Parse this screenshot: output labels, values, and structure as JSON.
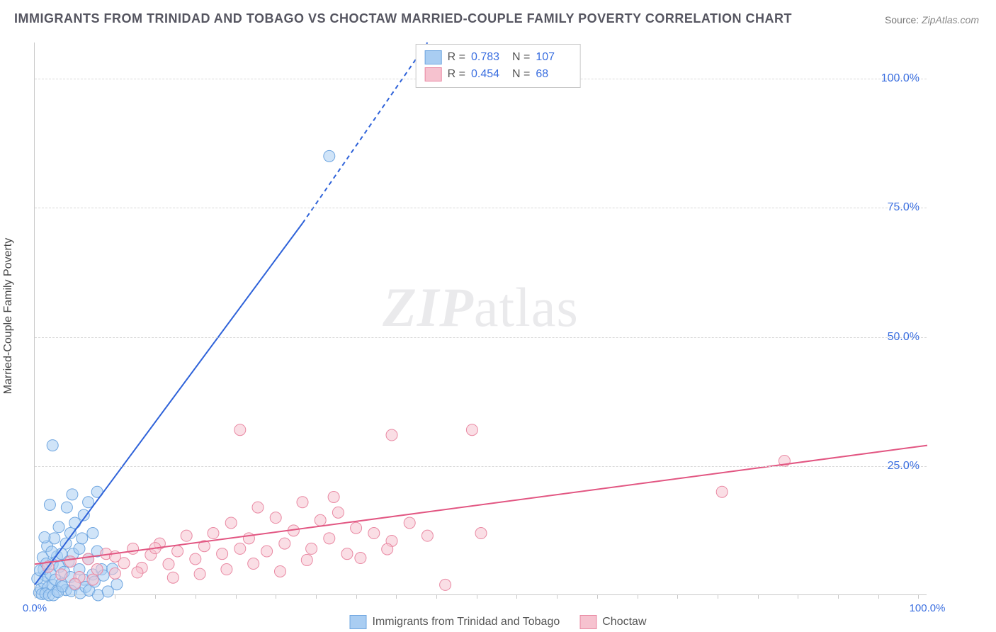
{
  "title": "IMMIGRANTS FROM TRINIDAD AND TOBAGO VS CHOCTAW MARRIED-COUPLE FAMILY POVERTY CORRELATION CHART",
  "source_label": "Source:",
  "source_value": "ZipAtlas.com",
  "y_axis_label": "Married-Couple Family Poverty",
  "watermark_a": "ZIP",
  "watermark_b": "atlas",
  "chart": {
    "type": "scatter-correlation",
    "background_color": "#ffffff",
    "grid_color": "#d8d8d8",
    "axis_color": "#c9c9c9",
    "tick_label_color": "#3b6fe0",
    "xlim": [
      0,
      100
    ],
    "ylim": [
      0,
      107
    ],
    "y_ticks": [
      25,
      50,
      75,
      100
    ],
    "y_tick_labels": [
      "25.0%",
      "50.0%",
      "75.0%",
      "100.0%"
    ],
    "x_ticks_minor_step": 4.5,
    "x_tick_labels": {
      "0": "0.0%",
      "100": "100.0%"
    },
    "marker_radius": 8,
    "marker_opacity": 0.55,
    "line_width": 2
  },
  "series": [
    {
      "id": "trinidad",
      "name": "Immigrants from Trinidad and Tobago",
      "color_fill": "#a9cdf2",
      "color_stroke": "#6fa6e0",
      "line_color": "#2e62d9",
      "R": "0.783",
      "N": "107",
      "trend": {
        "x1": 0,
        "y1": 2,
        "x2_solid": 30,
        "y2_solid": 72,
        "x2_dash": 44,
        "y2_dash": 107
      },
      "points": [
        [
          0.5,
          0.5
        ],
        [
          0.7,
          1.2
        ],
        [
          0.8,
          0.2
        ],
        [
          1.0,
          2.5
        ],
        [
          1.2,
          3.8
        ],
        [
          1.0,
          5.0
        ],
        [
          1.5,
          1.5
        ],
        [
          1.8,
          4.0
        ],
        [
          2.0,
          2.0
        ],
        [
          2.0,
          6.0
        ],
        [
          2.3,
          3.0
        ],
        [
          2.5,
          0.8
        ],
        [
          2.5,
          7.5
        ],
        [
          2.8,
          5.5
        ],
        [
          3.0,
          2.2
        ],
        [
          3.0,
          8.0
        ],
        [
          3.3,
          4.5
        ],
        [
          3.5,
          1.0
        ],
        [
          3.5,
          10.0
        ],
        [
          3.8,
          6.5
        ],
        [
          4.0,
          3.5
        ],
        [
          4.0,
          12.0
        ],
        [
          4.3,
          8.0
        ],
        [
          4.5,
          2.0
        ],
        [
          4.5,
          14.0
        ],
        [
          5.0,
          5.0
        ],
        [
          5.0,
          9.0
        ],
        [
          5.3,
          11.0
        ],
        [
          5.5,
          3.0
        ],
        [
          5.5,
          15.5
        ],
        [
          6.0,
          7.0
        ],
        [
          6.0,
          18.0
        ],
        [
          6.5,
          4.0
        ],
        [
          6.5,
          12.0
        ],
        [
          7.0,
          8.5
        ],
        [
          7.0,
          20.0
        ],
        [
          7.5,
          5.0
        ],
        [
          1.2,
          0.3
        ],
        [
          1.6,
          0.0
        ],
        [
          2.1,
          0.0
        ],
        [
          2.6,
          0.6
        ],
        [
          3.1,
          1.7
        ],
        [
          1.4,
          9.5
        ],
        [
          4.1,
          0.8
        ],
        [
          5.1,
          0.4
        ],
        [
          5.7,
          1.6
        ],
        [
          6.1,
          0.9
        ],
        [
          6.7,
          2.6
        ],
        [
          7.1,
          0.0
        ],
        [
          7.7,
          3.8
        ],
        [
          8.2,
          0.7
        ],
        [
          8.7,
          5.1
        ],
        [
          9.2,
          2.1
        ],
        [
          1.7,
          17.5
        ],
        [
          2.2,
          11.0
        ],
        [
          2.7,
          13.2
        ],
        [
          3.6,
          17.0
        ],
        [
          4.2,
          19.5
        ],
        [
          2.0,
          29.0
        ],
        [
          33.0,
          85.0
        ],
        [
          0.3,
          3.2
        ],
        [
          0.9,
          7.3
        ],
        [
          0.6,
          4.8
        ],
        [
          1.1,
          11.2
        ],
        [
          1.3,
          6.1
        ],
        [
          1.9,
          8.4
        ]
      ]
    },
    {
      "id": "choctaw",
      "name": "Choctaw",
      "color_fill": "#f6c2cf",
      "color_stroke": "#e989a3",
      "line_color": "#e25682",
      "R": "0.454",
      "N": "68",
      "trend": {
        "x1": 0,
        "y1": 6,
        "x2_solid": 100,
        "y2_solid": 29
      },
      "points": [
        [
          1.5,
          5.5
        ],
        [
          3.0,
          4.0
        ],
        [
          4.0,
          6.5
        ],
        [
          5.0,
          3.5
        ],
        [
          6.0,
          7.0
        ],
        [
          7.0,
          5.0
        ],
        [
          8.0,
          8.0
        ],
        [
          9.0,
          4.2
        ],
        [
          10.0,
          6.2
        ],
        [
          11.0,
          9.0
        ],
        [
          12.0,
          5.3
        ],
        [
          13.0,
          7.8
        ],
        [
          14.0,
          10.0
        ],
        [
          15.0,
          6.0
        ],
        [
          16.0,
          8.5
        ],
        [
          17.0,
          11.5
        ],
        [
          18.0,
          7.0
        ],
        [
          19.0,
          9.5
        ],
        [
          20.0,
          12.0
        ],
        [
          21.0,
          8.0
        ],
        [
          22.0,
          14.0
        ],
        [
          23.0,
          9.0
        ],
        [
          24.0,
          11.0
        ],
        [
          25.0,
          17.0
        ],
        [
          26.0,
          8.5
        ],
        [
          27.0,
          15.0
        ],
        [
          28.0,
          10.0
        ],
        [
          29.0,
          12.5
        ],
        [
          30.0,
          18.0
        ],
        [
          31.0,
          9.0
        ],
        [
          32.0,
          14.5
        ],
        [
          33.0,
          11.0
        ],
        [
          34.0,
          16.0
        ],
        [
          35.0,
          8.0
        ],
        [
          36.0,
          13.0
        ],
        [
          38.0,
          12.0
        ],
        [
          40.0,
          10.5
        ],
        [
          42.0,
          14.0
        ],
        [
          44.0,
          11.5
        ],
        [
          46.0,
          2.0
        ],
        [
          23.0,
          32.0
        ],
        [
          40.0,
          31.0
        ],
        [
          49.0,
          32.0
        ],
        [
          50.0,
          12.0
        ],
        [
          84.0,
          26.0
        ],
        [
          77.0,
          20.0
        ],
        [
          15.5,
          3.4
        ],
        [
          18.5,
          4.1
        ],
        [
          21.5,
          5.0
        ],
        [
          24.5,
          6.1
        ],
        [
          27.5,
          4.6
        ],
        [
          30.5,
          6.8
        ],
        [
          33.5,
          19.0
        ],
        [
          36.5,
          7.2
        ],
        [
          39.5,
          8.9
        ],
        [
          9.0,
          7.5
        ],
        [
          11.5,
          4.4
        ],
        [
          13.5,
          9.1
        ],
        [
          6.5,
          3.0
        ],
        [
          4.5,
          2.2
        ]
      ]
    }
  ]
}
